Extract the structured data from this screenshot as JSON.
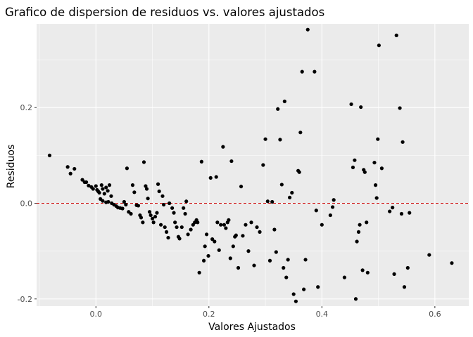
{
  "chart_data": {
    "type": "scatter",
    "title": "Grafico de dispersion de residuos vs. valores ajustados",
    "xlabel": "Valores Ajustados",
    "ylabel": "Residuos",
    "xlim": [
      -0.105,
      0.66
    ],
    "ylim": [
      -0.215,
      0.375
    ],
    "x_ticks": [
      0.0,
      0.2,
      0.4,
      0.6
    ],
    "x_tick_labels": [
      "0.0",
      "0.2",
      "0.4",
      "0.6"
    ],
    "y_ticks": [
      -0.2,
      0.0,
      0.2
    ],
    "y_tick_labels": [
      "-0.2",
      "0.0",
      "0.2"
    ],
    "grid": true,
    "panel_background": "#ebebeb",
    "point_color": "#000000",
    "reference_line": {
      "y": 0.0,
      "color": "#cc0000",
      "style": "dashed"
    },
    "points": [
      [
        -0.082,
        0.1
      ],
      [
        -0.05,
        0.076
      ],
      [
        -0.045,
        0.062
      ],
      [
        -0.038,
        0.072
      ],
      [
        -0.024,
        0.049
      ],
      [
        -0.02,
        0.044
      ],
      [
        -0.017,
        0.044
      ],
      [
        -0.013,
        0.037
      ],
      [
        -0.008,
        0.034
      ],
      [
        -0.005,
        0.03
      ],
      [
        0.0,
        0.036
      ],
      [
        0.002,
        0.028
      ],
      [
        0.004,
        0.025
      ],
      [
        0.006,
        0.022
      ],
      [
        0.01,
        0.038
      ],
      [
        0.012,
        0.03
      ],
      [
        0.015,
        0.02
      ],
      [
        0.018,
        0.033
      ],
      [
        0.021,
        0.026
      ],
      [
        0.024,
        0.038
      ],
      [
        0.027,
        0.015
      ],
      [
        0.008,
        0.009
      ],
      [
        0.012,
        0.005
      ],
      [
        0.018,
        0.002
      ],
      [
        0.022,
        0.003
      ],
      [
        0.028,
        0.0
      ],
      [
        0.032,
        -0.003
      ],
      [
        0.036,
        -0.006
      ],
      [
        0.039,
        -0.009
      ],
      [
        0.043,
        -0.01
      ],
      [
        0.047,
        -0.011
      ],
      [
        0.05,
        0.003
      ],
      [
        0.053,
        -0.003
      ],
      [
        0.058,
        -0.018
      ],
      [
        0.062,
        -0.022
      ],
      [
        0.055,
        0.073
      ],
      [
        0.065,
        0.038
      ],
      [
        0.068,
        0.023
      ],
      [
        0.072,
        -0.004
      ],
      [
        0.075,
        -0.005
      ],
      [
        0.078,
        -0.025
      ],
      [
        0.08,
        -0.03
      ],
      [
        0.083,
        -0.04
      ],
      [
        0.085,
        0.086
      ],
      [
        0.088,
        0.036
      ],
      [
        0.09,
        0.03
      ],
      [
        0.092,
        0.01
      ],
      [
        0.095,
        -0.018
      ],
      [
        0.097,
        -0.025
      ],
      [
        0.1,
        -0.032
      ],
      [
        0.102,
        -0.04
      ],
      [
        0.105,
        -0.028
      ],
      [
        0.108,
        -0.02
      ],
      [
        0.11,
        0.04
      ],
      [
        0.112,
        0.025
      ],
      [
        0.115,
        -0.045
      ],
      [
        0.118,
        0.015
      ],
      [
        0.12,
        -0.003
      ],
      [
        0.122,
        -0.05
      ],
      [
        0.125,
        -0.06
      ],
      [
        0.128,
        -0.072
      ],
      [
        0.13,
        0.0
      ],
      [
        0.135,
        -0.01
      ],
      [
        0.138,
        -0.02
      ],
      [
        0.14,
        -0.04
      ],
      [
        0.143,
        -0.05
      ],
      [
        0.146,
        -0.07
      ],
      [
        0.148,
        -0.074
      ],
      [
        0.152,
        -0.05
      ],
      [
        0.155,
        -0.01
      ],
      [
        0.158,
        -0.022
      ],
      [
        0.16,
        0.004
      ],
      [
        0.163,
        -0.065
      ],
      [
        0.168,
        -0.055
      ],
      [
        0.172,
        -0.045
      ],
      [
        0.175,
        -0.04
      ],
      [
        0.178,
        -0.035
      ],
      [
        0.18,
        -0.04
      ],
      [
        0.183,
        -0.145
      ],
      [
        0.187,
        0.087
      ],
      [
        0.191,
        -0.12
      ],
      [
        0.193,
        -0.09
      ],
      [
        0.196,
        -0.065
      ],
      [
        0.199,
        -0.11
      ],
      [
        0.203,
        0.053
      ],
      [
        0.206,
        -0.075
      ],
      [
        0.21,
        -0.08
      ],
      [
        0.213,
        0.055
      ],
      [
        0.215,
        -0.04
      ],
      [
        0.218,
        -0.098
      ],
      [
        0.221,
        -0.045
      ],
      [
        0.225,
        0.118
      ],
      [
        0.227,
        -0.045
      ],
      [
        0.23,
        -0.052
      ],
      [
        0.233,
        -0.04
      ],
      [
        0.235,
        -0.035
      ],
      [
        0.238,
        -0.115
      ],
      [
        0.24,
        0.088
      ],
      [
        0.243,
        -0.09
      ],
      [
        0.246,
        -0.07
      ],
      [
        0.248,
        -0.067
      ],
      [
        0.252,
        -0.135
      ],
      [
        0.257,
        0.035
      ],
      [
        0.26,
        -0.068
      ],
      [
        0.265,
        -0.045
      ],
      [
        0.27,
        -0.1
      ],
      [
        0.275,
        -0.04
      ],
      [
        0.28,
        -0.13
      ],
      [
        0.285,
        -0.05
      ],
      [
        0.29,
        -0.06
      ],
      [
        0.296,
        0.08
      ],
      [
        0.3,
        0.134
      ],
      [
        0.304,
        0.004
      ],
      [
        0.308,
        -0.12
      ],
      [
        0.312,
        0.003
      ],
      [
        0.316,
        -0.055
      ],
      [
        0.319,
        -0.102
      ],
      [
        0.322,
        0.197
      ],
      [
        0.326,
        0.133
      ],
      [
        0.329,
        0.039
      ],
      [
        0.332,
        -0.135
      ],
      [
        0.334,
        0.213
      ],
      [
        0.337,
        -0.155
      ],
      [
        0.34,
        -0.118
      ],
      [
        0.343,
        0.012
      ],
      [
        0.347,
        0.022
      ],
      [
        0.35,
        -0.19
      ],
      [
        0.354,
        -0.205
      ],
      [
        0.358,
        0.068
      ],
      [
        0.36,
        0.065
      ],
      [
        0.362,
        0.148
      ],
      [
        0.365,
        0.275
      ],
      [
        0.368,
        -0.18
      ],
      [
        0.371,
        -0.118
      ],
      [
        0.375,
        0.363
      ],
      [
        0.387,
        0.275
      ],
      [
        0.39,
        -0.015
      ],
      [
        0.393,
        -0.175
      ],
      [
        0.4,
        -0.045
      ],
      [
        0.415,
        -0.025
      ],
      [
        0.419,
        -0.008
      ],
      [
        0.421,
        0.007
      ],
      [
        0.44,
        -0.155
      ],
      [
        0.452,
        0.207
      ],
      [
        0.455,
        0.075
      ],
      [
        0.458,
        0.09
      ],
      [
        0.46,
        -0.2
      ],
      [
        0.462,
        -0.08
      ],
      [
        0.465,
        -0.06
      ],
      [
        0.467,
        -0.045
      ],
      [
        0.469,
        0.201
      ],
      [
        0.472,
        -0.14
      ],
      [
        0.474,
        0.07
      ],
      [
        0.476,
        0.065
      ],
      [
        0.479,
        -0.04
      ],
      [
        0.481,
        -0.145
      ],
      [
        0.493,
        0.085
      ],
      [
        0.495,
        0.038
      ],
      [
        0.497,
        0.011
      ],
      [
        0.499,
        0.134
      ],
      [
        0.501,
        0.33
      ],
      [
        0.506,
        0.073
      ],
      [
        0.52,
        -0.017
      ],
      [
        0.525,
        -0.009
      ],
      [
        0.528,
        -0.148
      ],
      [
        0.532,
        0.351
      ],
      [
        0.538,
        0.199
      ],
      [
        0.541,
        -0.022
      ],
      [
        0.543,
        0.128
      ],
      [
        0.546,
        -0.175
      ],
      [
        0.552,
        -0.135
      ],
      [
        0.59,
        -0.108
      ],
      [
        0.63,
        -0.125
      ],
      [
        0.555,
        -0.02
      ]
    ]
  }
}
